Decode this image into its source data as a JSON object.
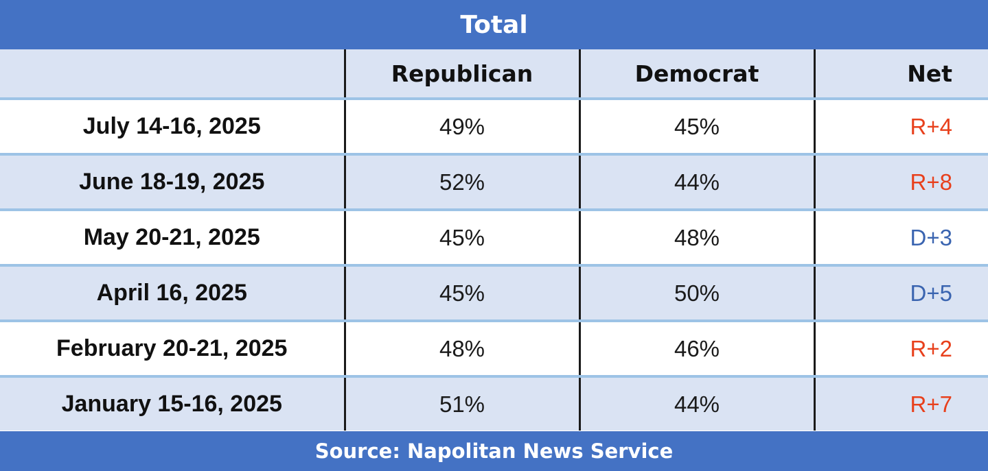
{
  "chart_data": {
    "type": "table",
    "title": "Total",
    "columns": [
      "",
      "Republican",
      "Democrat",
      "Net"
    ],
    "rows": [
      {
        "date": "July 14-16, 2025",
        "republican": "49%",
        "democrat": "45%",
        "net": "R+4"
      },
      {
        "date": "June 18-19, 2025",
        "republican": "52%",
        "democrat": "44%",
        "net": "R+8"
      },
      {
        "date": "May 20-21, 2025",
        "republican": "45%",
        "democrat": "48%",
        "net": "D+3"
      },
      {
        "date": "April 16, 2025",
        "republican": "45%",
        "democrat": "50%",
        "net": "D+5"
      },
      {
        "date": "February 20-21, 2025",
        "republican": "48%",
        "democrat": "46%",
        "net": "R+2"
      },
      {
        "date": "January 15-16, 2025",
        "republican": "51%",
        "democrat": "44%",
        "net": "R+7"
      }
    ],
    "source": "Source: Napolitan News Service"
  },
  "colors": {
    "header_bar": "#4472c4",
    "band_light": "#dae3f3",
    "row_separator": "#9dc3e6",
    "net_republican": "#e8401c",
    "net_democrat": "#3a64b0"
  }
}
